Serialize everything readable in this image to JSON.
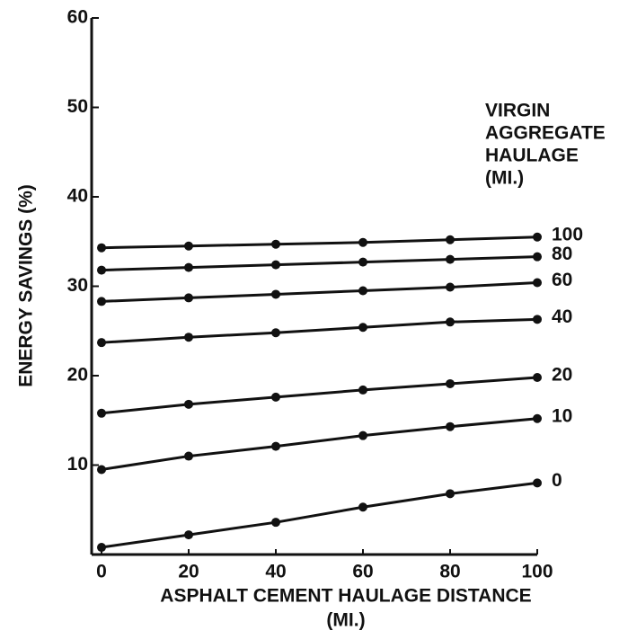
{
  "chart_data": {
    "type": "line",
    "xlabel": [
      "ASPHALT CEMENT HAULAGE DISTANCE",
      "(MI.)"
    ],
    "ylabel": "ENERGY SAVINGS (%)",
    "legend_title": [
      "VIRGIN",
      "AGGREGATE",
      "HAULAGE",
      "(MI.)"
    ],
    "x": [
      0,
      20,
      40,
      60,
      80,
      100
    ],
    "xlim": [
      0,
      100
    ],
    "xticks": [
      0,
      20,
      40,
      60,
      80,
      100
    ],
    "ylim": [
      0,
      60
    ],
    "yticks": [
      10,
      20,
      30,
      40,
      50,
      60
    ],
    "series": [
      {
        "name": "100",
        "color": "#111111",
        "values": [
          34.3,
          34.5,
          34.7,
          34.9,
          35.2,
          35.5
        ]
      },
      {
        "name": "80",
        "color": "#111111",
        "values": [
          31.8,
          32.1,
          32.4,
          32.7,
          33.0,
          33.3
        ]
      },
      {
        "name": "60",
        "color": "#111111",
        "values": [
          28.3,
          28.7,
          29.1,
          29.5,
          29.9,
          30.4
        ]
      },
      {
        "name": "40",
        "color": "#111111",
        "values": [
          23.7,
          24.3,
          24.8,
          25.4,
          26.0,
          26.3
        ]
      },
      {
        "name": "20",
        "color": "#111111",
        "values": [
          15.8,
          16.8,
          17.6,
          18.4,
          19.1,
          19.8
        ]
      },
      {
        "name": "10",
        "color": "#111111",
        "values": [
          9.5,
          11.0,
          12.1,
          13.3,
          14.3,
          15.2
        ]
      },
      {
        "name": "0",
        "color": "#111111",
        "values": [
          0.8,
          2.2,
          3.6,
          5.3,
          6.8,
          8.0
        ]
      }
    ]
  }
}
